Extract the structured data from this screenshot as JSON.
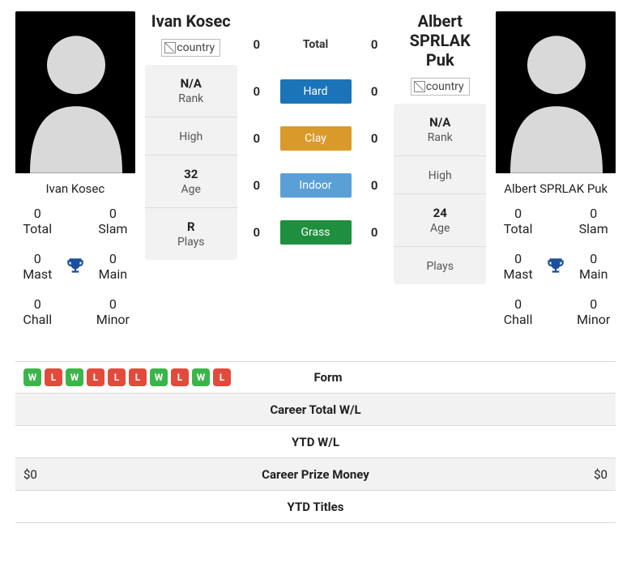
{
  "colors": {
    "win_badge": "#3bb54a",
    "loss_badge": "#e24b3b",
    "trophy": "#1b4f9c",
    "hard": "#1b74b8",
    "clay": "#d99a2b",
    "indoor": "#5aa0d6",
    "grass": "#1e8f3e",
    "row_shade": "#f2f2f2"
  },
  "left": {
    "name_full": "Ivan Kosec",
    "flag_alt": "country",
    "card_name": "Ivan Kosec",
    "stats": {
      "total": "0",
      "slam": "0",
      "mast": "0",
      "main": "0",
      "chall": "0",
      "minor": "0"
    },
    "info": {
      "rank_v": "N/A",
      "rank_l": "Rank",
      "high_v": "",
      "high_l": "High",
      "age_v": "32",
      "age_l": "Age",
      "plays_v": "R",
      "plays_l": "Plays"
    },
    "form": [
      "W",
      "L",
      "W",
      "L",
      "L",
      "L",
      "W",
      "L",
      "W",
      "L"
    ],
    "prize": "$0"
  },
  "right": {
    "name_full": "Albert SPRLAK Puk",
    "flag_alt": "country",
    "card_name": "Albert SPRLAK Puk",
    "stats": {
      "total": "0",
      "slam": "0",
      "mast": "0",
      "main": "0",
      "chall": "0",
      "minor": "0"
    },
    "info": {
      "rank_v": "N/A",
      "rank_l": "Rank",
      "high_v": "",
      "high_l": "High",
      "age_v": "24",
      "age_l": "Age",
      "plays_v": "",
      "plays_l": "Plays"
    },
    "form": [],
    "prize": "$0"
  },
  "center": {
    "rows": [
      {
        "l": "0",
        "label": "Total",
        "r": "0",
        "bg": ""
      },
      {
        "l": "0",
        "label": "Hard",
        "r": "0",
        "bg": "#1b74b8"
      },
      {
        "l": "0",
        "label": "Clay",
        "r": "0",
        "bg": "#d99a2b"
      },
      {
        "l": "0",
        "label": "Indoor",
        "r": "0",
        "bg": "#5aa0d6"
      },
      {
        "l": "0",
        "label": "Grass",
        "r": "0",
        "bg": "#1e8f3e"
      }
    ]
  },
  "compare_rows": [
    {
      "key": "form",
      "label": "Form",
      "left_is_form": true,
      "shaded": false
    },
    {
      "key": "cwl",
      "label": "Career Total W/L",
      "left": "",
      "right": "",
      "shaded": true
    },
    {
      "key": "ywl",
      "label": "YTD W/L",
      "left": "",
      "right": "",
      "shaded": false
    },
    {
      "key": "prize",
      "label": "Career Prize Money",
      "left": "$0",
      "right": "$0",
      "shaded": true
    },
    {
      "key": "titles",
      "label": "YTD Titles",
      "left": "",
      "right": "",
      "shaded": false
    }
  ],
  "labels": {
    "total": "Total",
    "slam": "Slam",
    "mast": "Mast",
    "main": "Main",
    "chall": "Chall",
    "minor": "Minor"
  }
}
